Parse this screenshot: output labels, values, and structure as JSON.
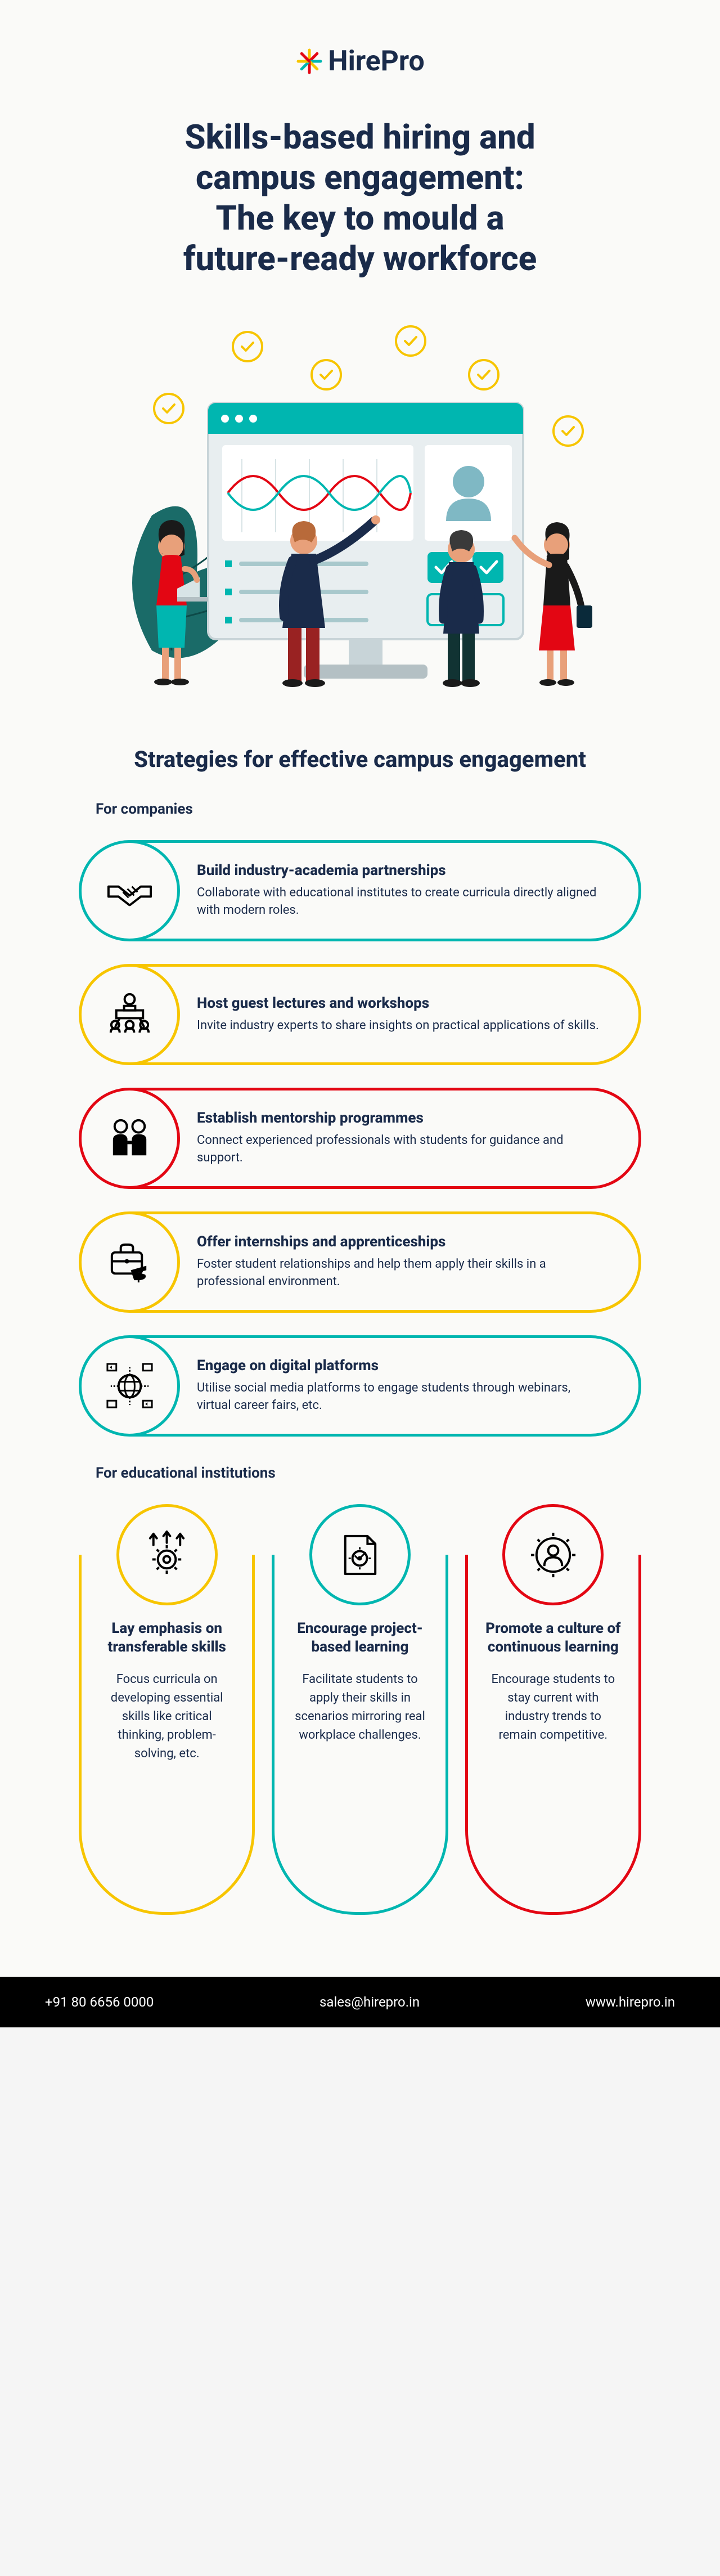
{
  "brand": {
    "name": "HirePro"
  },
  "title_lines": [
    "Skills-based hiring and",
    "campus engagement:",
    "The key to mould a",
    "future-ready workforce"
  ],
  "section_heading": "Strategies for effective campus engagement",
  "companies_label": "For companies",
  "institutions_label": "For educational institutions",
  "colors": {
    "teal": "#00b6b0",
    "yellow": "#f7c500",
    "red": "#e30613",
    "navy": "#1a2b4a"
  },
  "company_cards": [
    {
      "title": "Build industry-academia partnerships",
      "desc": "Collaborate with educational institutes to create curricula directly aligned with modern roles.",
      "color": "#00b6b0",
      "icon": "handshake"
    },
    {
      "title": "Host guest lectures and workshops",
      "desc": "Invite industry experts to share insights on practical applications of skills.",
      "color": "#f7c500",
      "icon": "lecture"
    },
    {
      "title": "Establish mentorship programmes",
      "desc": "Connect experienced professionals with students for guidance and support.",
      "color": "#e30613",
      "icon": "mentor"
    },
    {
      "title": "Offer internships and apprenticeships",
      "desc": "Foster student relationships and help them apply their skills in a professional environment.",
      "color": "#f7c500",
      "icon": "briefcase"
    },
    {
      "title": "Engage on digital platforms",
      "desc": "Utilise social media platforms to engage students through webinars, virtual career fairs, etc.",
      "color": "#00b6b0",
      "icon": "globe"
    }
  ],
  "institution_cards": [
    {
      "title": "Lay emphasis on transferable skills",
      "desc": "Focus curricula on developing essential skills like critical thinking, problem-solving, etc.",
      "color": "#f7c500",
      "icon": "gear-arrows"
    },
    {
      "title": "Encourage project-based learning",
      "desc": "Facilitate students to apply their skills in scenarios mirroring real workplace challenges.",
      "color": "#00b6b0",
      "icon": "doc-gear"
    },
    {
      "title": "Promote a culture of continuous learning",
      "desc": "Encourage students to stay current with industry trends to remain competitive.",
      "color": "#e30613",
      "icon": "person-gear"
    }
  ],
  "footer": {
    "phone": "+91 80 6656 0000",
    "email": "sales@hirepro.in",
    "site": "www.hirepro.in"
  }
}
